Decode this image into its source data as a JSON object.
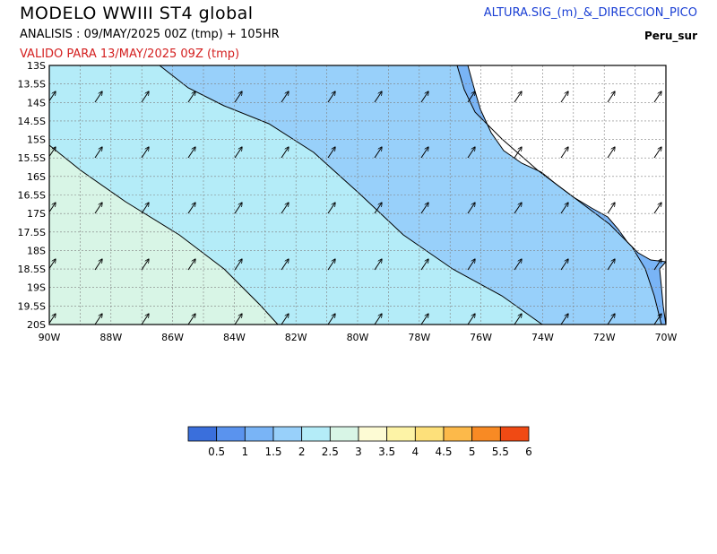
{
  "header": {
    "title": "MODELO WWIII ST4 global",
    "analysis": "ANALISIS : 09/MAY/2025 00Z  (tmp) + 105HR",
    "valid": "VALIDO PARA  13/MAY/2025 09Z  (tmp)",
    "product": "ALTURA.SIG_(m)_&_DIRECCION_PICO",
    "region": "Peru_sur"
  },
  "map": {
    "lon_range": [
      -90,
      -70
    ],
    "lat_range": [
      -20,
      -13
    ],
    "lon_ticks": [
      "90W",
      "88W",
      "86W",
      "84W",
      "82W",
      "80W",
      "78W",
      "76W",
      "74W",
      "72W",
      "70W"
    ],
    "lat_ticks": [
      "13S",
      "13.5S",
      "14S",
      "14.5S",
      "15S",
      "15.5S",
      "16S",
      "16.5S",
      "17S",
      "17.5S",
      "18S",
      "18.5S",
      "19S",
      "19.5S",
      "20S"
    ],
    "grid": true,
    "wave_direction": "northeast",
    "contour_levels_m": [
      1.5,
      2,
      2.5
    ]
  },
  "colorbar": {
    "labels": [
      "0.5",
      "1",
      "1.5",
      "2",
      "2.5",
      "3",
      "3.5",
      "4",
      "4.5",
      "5",
      "5.5",
      "6"
    ],
    "colors": [
      "#3a6fdc",
      "#5a93ee",
      "#79b4f6",
      "#98d0fa",
      "#b4ecf8",
      "#d8f5e6",
      "#fdfbd4",
      "#fdf3a6",
      "#fde07a",
      "#fcb94a",
      "#f88a24",
      "#f04a14"
    ]
  },
  "palette": {
    "band_1_5_2": "#98d0fa",
    "band_2_2_5": "#b4ecf8",
    "band_2_5_3": "#d8f5e6",
    "band_1_1_5": "#79b4f6",
    "land": "#ffffff"
  }
}
